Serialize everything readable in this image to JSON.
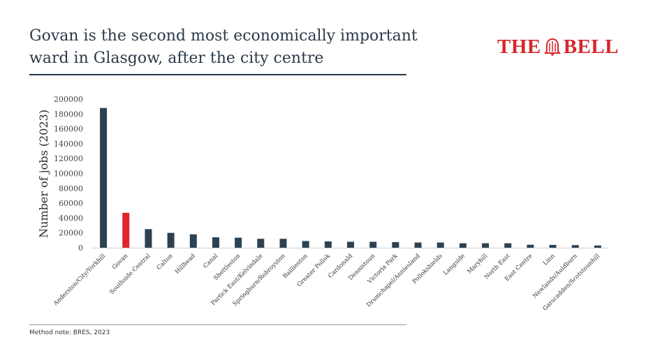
{
  "header": {
    "title": "Govan is the second most economically important ward in Glasgow, after the city centre",
    "logo_left": "THE",
    "logo_right": "BELL",
    "brand_color": "#d6262c"
  },
  "footer": {
    "note": "Method note: BRES, 2023"
  },
  "colors": {
    "bar": "#2c4253",
    "highlight": "#e0262c"
  },
  "chart_data": {
    "type": "bar",
    "title": "Govan is the second most economically important ward in Glasgow, after the city centre",
    "xlabel": "",
    "ylabel": "Number of jobs (2023)",
    "ylim": [
      0,
      200000
    ],
    "yticks": [
      0,
      20000,
      40000,
      60000,
      80000,
      100000,
      120000,
      140000,
      160000,
      180000,
      200000
    ],
    "grid": false,
    "highlight": "Govan",
    "categories": [
      "Anderston/City/Yorkhill",
      "Govan",
      "Southside Central",
      "Calton",
      "Hillhead",
      "Canal",
      "Shettleston",
      "Partick East/Kelvindale",
      "Springburn/Robroyston",
      "Baillieston",
      "Greater Pollok",
      "Cardonald",
      "Dennistoun",
      "Victoria Park",
      "Drumchapel/Anniesland",
      "Pollokshields",
      "Langside",
      "Maryhill",
      "North East",
      "East Centre",
      "Linn",
      "Newlands/Auldburn",
      "Garscadden/Scotstounhill"
    ],
    "values": [
      188000,
      47000,
      25000,
      20000,
      18000,
      14000,
      13500,
      12000,
      12000,
      9000,
      8500,
      8000,
      8000,
      7500,
      7000,
      7000,
      6000,
      6000,
      6000,
      4000,
      3800,
      3500,
      3000
    ]
  }
}
